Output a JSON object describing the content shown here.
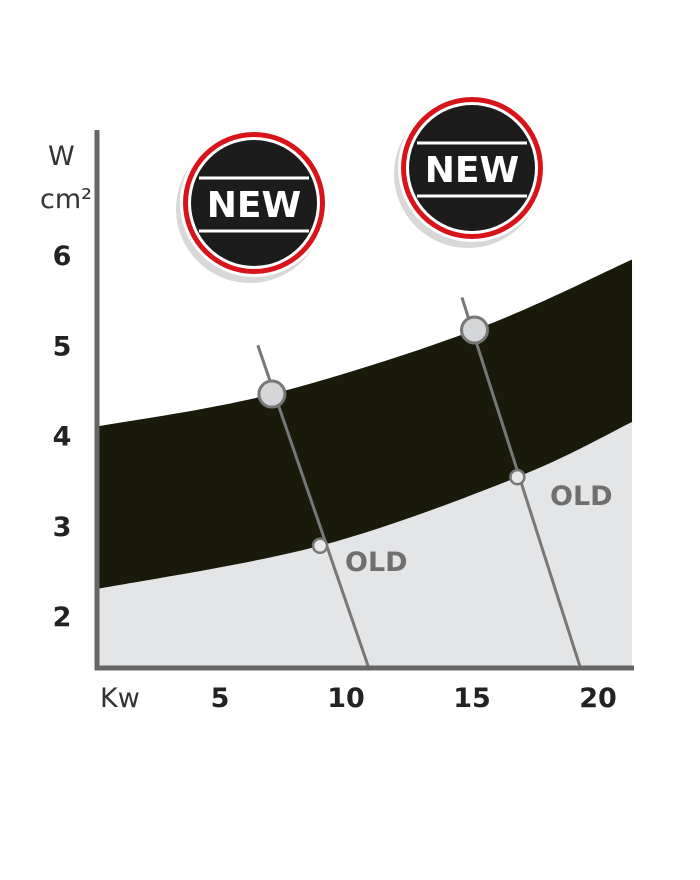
{
  "chart_data": {
    "type": "area",
    "xlabel": "Kw",
    "ylabel": [
      "W",
      "cm²"
    ],
    "x_ticks": [
      5,
      10,
      15,
      20
    ],
    "y_ticks": [
      2,
      3,
      4,
      5,
      6
    ],
    "xlim": [
      0.1,
      21.35
    ],
    "ylim": [
      1.43,
      7.6
    ],
    "band": {
      "upper": [
        [
          0.1,
          4.1
        ],
        [
          7.06,
          4.46
        ],
        [
          15.1,
          5.17
        ],
        [
          21.35,
          5.95
        ]
      ],
      "lower": [
        [
          0.1,
          2.3
        ],
        [
          8.97,
          2.78
        ],
        [
          16.8,
          3.54
        ],
        [
          21.35,
          4.15
        ]
      ],
      "color": "#1a1a0a"
    },
    "below_band_color": "#e4e5e7",
    "guide_lines": [
      {
        "from": [
          6.5,
          5.0
        ],
        "to": [
          10.9,
          1.43
        ]
      },
      {
        "from": [
          14.6,
          5.53
        ],
        "to": [
          19.3,
          1.43
        ]
      }
    ],
    "points_new": [
      [
        7.06,
        4.46
      ],
      [
        15.1,
        5.17
      ]
    ],
    "points_old": [
      [
        8.97,
        2.78
      ],
      [
        16.8,
        3.54
      ]
    ],
    "annotations": {
      "old_label": "OLD",
      "new_label": "NEW"
    },
    "badge_colors": {
      "ring": "#d7141a",
      "fill": "#1c1c1c"
    }
  }
}
